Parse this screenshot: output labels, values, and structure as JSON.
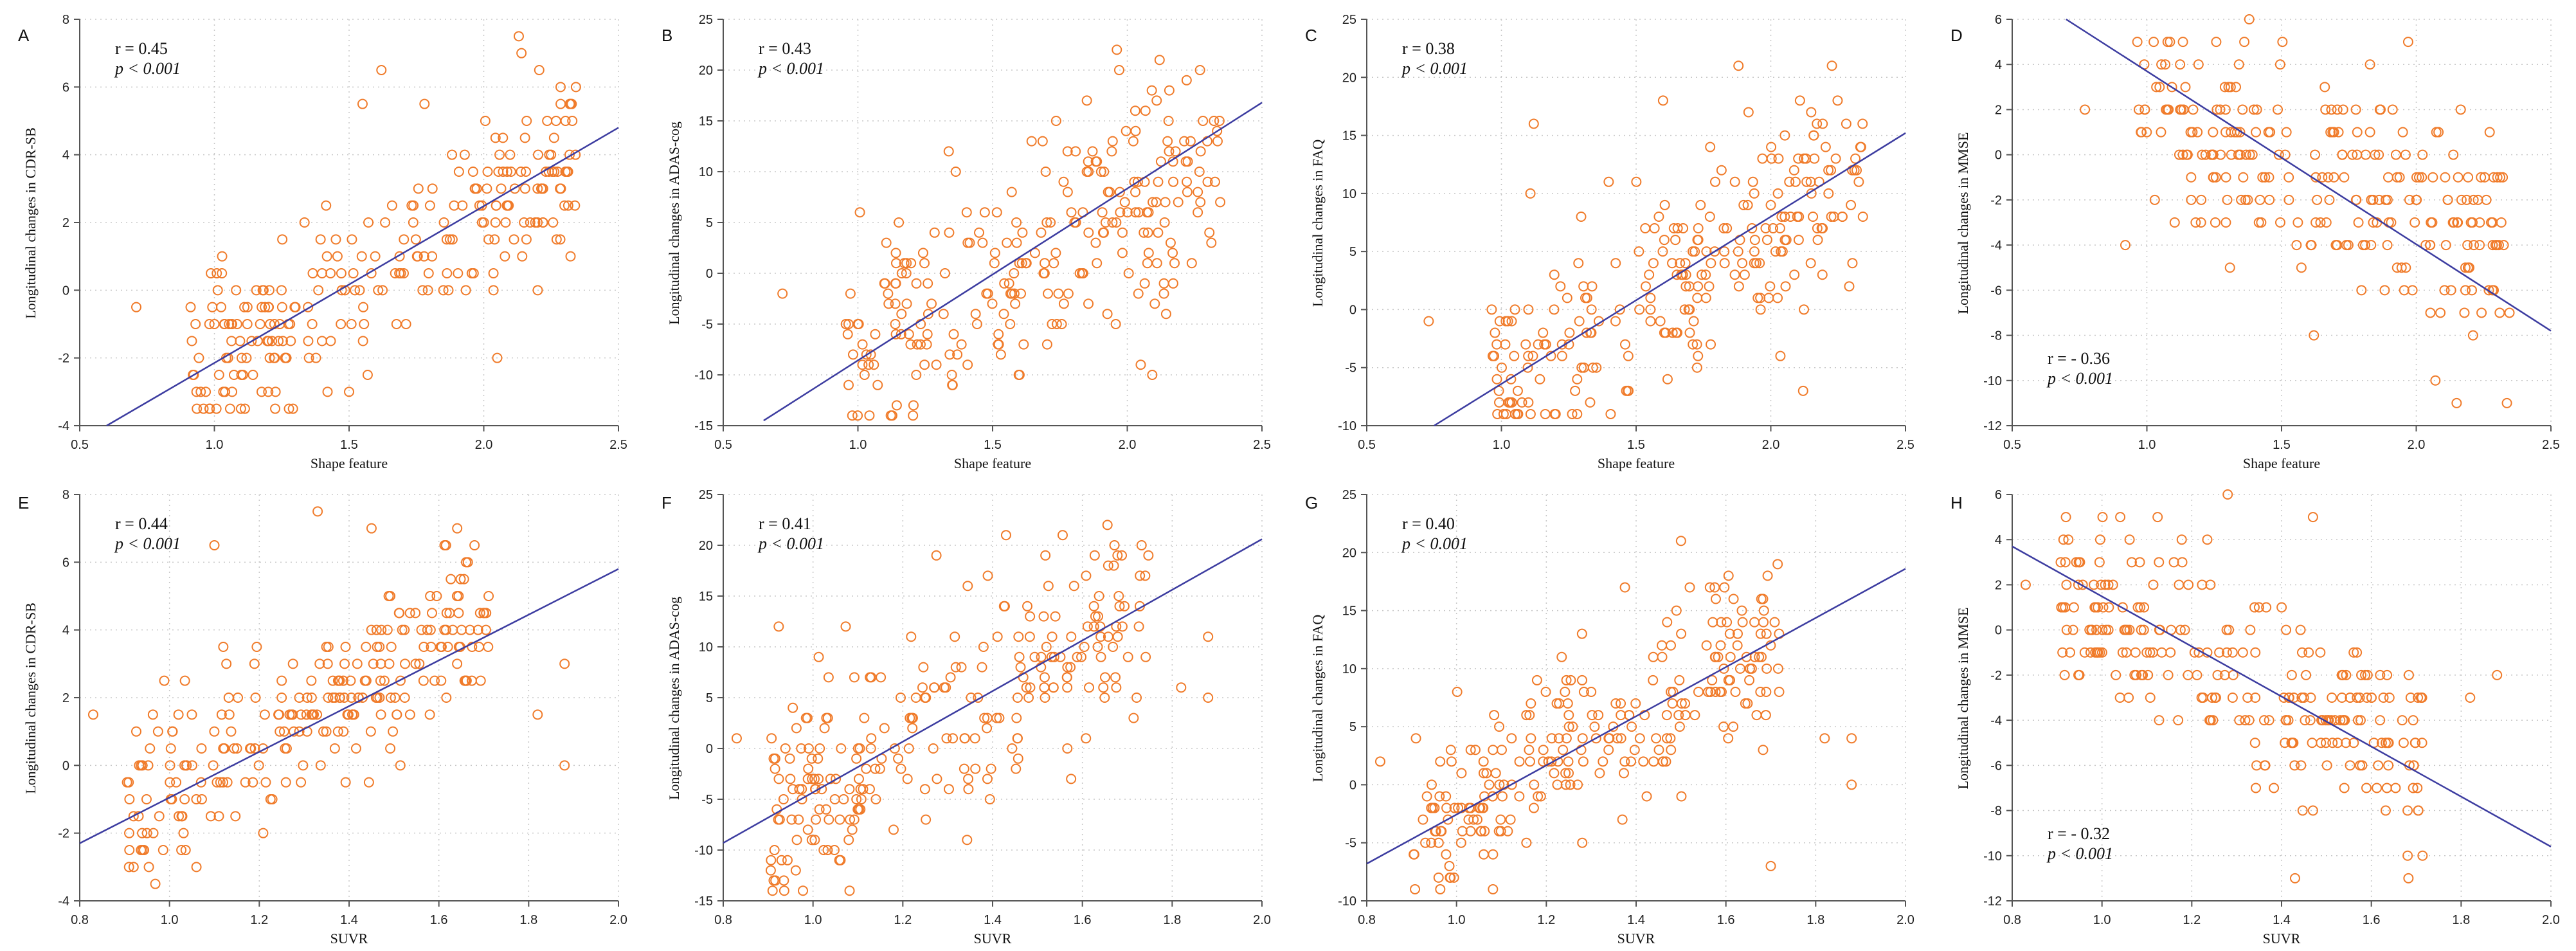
{
  "chart_data": [
    {
      "panel_label": "A",
      "type": "scatter",
      "xlabel": "Shape feature",
      "ylabel": "Longitudinal changes in CDR-SB",
      "xlim": [
        0.5,
        2.5
      ],
      "ylim": [
        -4,
        8
      ],
      "xticks": [
        0.5,
        1.0,
        1.5,
        2.0,
        2.5
      ],
      "xtick_labels": [
        "0.5",
        "1.0",
        "1.5",
        "2.0",
        "2.5"
      ],
      "yticks": [
        -4,
        -2,
        0,
        2,
        4,
        6,
        8
      ],
      "ytick_labels": [
        "-4",
        "-2",
        "0",
        "2",
        "4",
        "6",
        "8"
      ],
      "r_text": "r = 0.45",
      "p_text": "p < 0.001",
      "stat_position": "top-left",
      "regression": [
        [
          0.6,
          -4.0
        ],
        [
          2.5,
          4.8
        ]
      ],
      "trend": {
        "slope": 4.5,
        "intercept": -6.7,
        "spread": 1.3,
        "x_min": 0.9,
        "x_max": 2.35,
        "step": 0.5
      },
      "outliers": [
        [
          0.71,
          -0.5
        ],
        [
          2.13,
          7.5
        ],
        [
          2.14,
          7.0
        ],
        [
          1.62,
          6.5
        ],
        [
          1.78,
          5.5
        ],
        [
          1.55,
          5.5
        ],
        [
          1.2,
          -3.0
        ],
        [
          1.5,
          -3.0
        ],
        [
          2.05,
          -2.0
        ],
        [
          0.93,
          -1.0
        ]
      ],
      "n_points": 250,
      "seed": 11
    },
    {
      "panel_label": "B",
      "type": "scatter",
      "xlabel": "Shape feature",
      "ylabel": "Longitudinal changes in ADAS-cog",
      "xlim": [
        0.5,
        2.5
      ],
      "ylim": [
        -15,
        25
      ],
      "xticks": [
        0.5,
        1.0,
        1.5,
        2.0,
        2.5
      ],
      "xtick_labels": [
        "0.5",
        "1.0",
        "1.5",
        "2.0",
        "2.5"
      ],
      "yticks": [
        -15,
        -10,
        -5,
        0,
        5,
        10,
        15,
        20,
        25
      ],
      "ytick_labels": [
        "-15",
        "-10",
        "-5",
        "0",
        "5",
        "10",
        "15",
        "20",
        "25"
      ],
      "r_text": "r = 0.43",
      "p_text": "p < 0.001",
      "stat_position": "top-left",
      "regression": [
        [
          0.65,
          -14.5
        ],
        [
          2.5,
          16.8
        ]
      ],
      "trend": {
        "slope": 15.0,
        "intercept": -23.0,
        "spread": 5.5,
        "x_min": 0.95,
        "x_max": 2.35,
        "step": 1
      },
      "outliers": [
        [
          0.72,
          -2.0
        ],
        [
          2.12,
          21.0
        ],
        [
          1.97,
          20.0
        ],
        [
          1.85,
          17.0
        ],
        [
          1.35,
          -11.0
        ],
        [
          1.6,
          -10.0
        ],
        [
          2.05,
          -9.0
        ]
      ],
      "n_points": 250,
      "seed": 22
    },
    {
      "panel_label": "C",
      "type": "scatter",
      "xlabel": "Shape feature",
      "ylabel": "Longitudinal changes in FAQ",
      "xlim": [
        0.5,
        2.5
      ],
      "ylim": [
        -10,
        25
      ],
      "xticks": [
        0.5,
        1.0,
        1.5,
        2.0,
        2.5
      ],
      "xtick_labels": [
        "0.5",
        "1.0",
        "1.5",
        "2.0",
        "2.5"
      ],
      "yticks": [
        -10,
        -5,
        0,
        5,
        10,
        15,
        20,
        25
      ],
      "ytick_labels": [
        "-10",
        "-5",
        "0",
        "5",
        "10",
        "15",
        "20",
        "25"
      ],
      "r_text": "r = 0.38",
      "p_text": "p < 0.001",
      "stat_position": "top-left",
      "regression": [
        [
          0.75,
          -10.0
        ],
        [
          2.5,
          15.2
        ]
      ],
      "trend": {
        "slope": 12.5,
        "intercept": -18.0,
        "spread": 4.5,
        "x_min": 0.95,
        "x_max": 2.35,
        "step": 1
      },
      "outliers": [
        [
          0.73,
          -1.0
        ],
        [
          1.88,
          21.0
        ],
        [
          1.1,
          -8.0
        ],
        [
          1.6,
          18.0
        ],
        [
          2.12,
          -7.0
        ],
        [
          1.12,
          16.0
        ]
      ],
      "n_points": 250,
      "seed": 33
    },
    {
      "panel_label": "D",
      "type": "scatter",
      "xlabel": "Shape feature",
      "ylabel": "Longitudinal changes in MMSE",
      "xlim": [
        0.5,
        2.5
      ],
      "ylim": [
        -12,
        6
      ],
      "xticks": [
        0.5,
        1.0,
        1.5,
        2.0,
        2.5
      ],
      "xtick_labels": [
        "0.5",
        "1.0",
        "1.5",
        "2.0",
        "2.5"
      ],
      "yticks": [
        -12,
        -10,
        -8,
        -6,
        -4,
        -2,
        0,
        2,
        4,
        6
      ],
      "ytick_labels": [
        "-12",
        "-10",
        "-8",
        "-6",
        "-4",
        "-2",
        "0",
        "2",
        "4",
        "6"
      ],
      "r_text": "r =  - 0.36",
      "p_text": "p < 0.001",
      "stat_position": "bottom-left",
      "regression": [
        [
          0.7,
          6.0
        ],
        [
          2.5,
          -7.8
        ]
      ],
      "trend": {
        "slope": -4.2,
        "intercept": 5.8,
        "spread": 2.2,
        "x_min": 0.95,
        "x_max": 2.35,
        "step": 1
      },
      "outliers": [
        [
          0.77,
          2.0
        ],
        [
          2.15,
          -11.0
        ],
        [
          1.38,
          6.0
        ],
        [
          1.97,
          5.0
        ],
        [
          1.62,
          -8.0
        ],
        [
          0.92,
          -4.0
        ]
      ],
      "n_points": 250,
      "seed": 44
    },
    {
      "panel_label": "E",
      "type": "scatter",
      "xlabel": "SUVR",
      "ylabel": "Longitudinal changes in CDR-SB",
      "xlim": [
        0.8,
        2.0
      ],
      "ylim": [
        -4,
        8
      ],
      "xticks": [
        0.8,
        1.0,
        1.2,
        1.4,
        1.6,
        1.8,
        2.0
      ],
      "xtick_labels": [
        "0.8",
        "1.0",
        "1.2",
        "1.4",
        "1.6",
        "1.8",
        "2.0"
      ],
      "yticks": [
        -4,
        -2,
        0,
        2,
        4,
        6,
        8
      ],
      "ytick_labels": [
        "-4",
        "-2",
        "0",
        "2",
        "4",
        "6",
        "8"
      ],
      "r_text": "r = 0.44",
      "p_text": "p < 0.001",
      "stat_position": "top-left",
      "regression": [
        [
          0.8,
          -2.3
        ],
        [
          2.0,
          5.8
        ]
      ],
      "trend": {
        "slope": 6.8,
        "intercept": -7.4,
        "spread": 1.3,
        "x_min": 0.9,
        "x_max": 1.72,
        "step": 0.5
      },
      "outliers": [
        [
          0.83,
          1.5
        ],
        [
          1.33,
          7.5
        ],
        [
          1.45,
          7.0
        ],
        [
          1.1,
          6.5
        ],
        [
          1.88,
          3.0
        ],
        [
          1.88,
          0.0
        ],
        [
          0.92,
          -3.0
        ],
        [
          1.06,
          -3.0
        ],
        [
          1.82,
          1.5
        ]
      ],
      "n_points": 250,
      "seed": 55
    },
    {
      "panel_label": "F",
      "type": "scatter",
      "xlabel": "SUVR",
      "ylabel": "Longitudinal changes in ADAS-cog",
      "xlim": [
        0.8,
        2.0
      ],
      "ylim": [
        -15,
        25
      ],
      "xticks": [
        0.8,
        1.0,
        1.2,
        1.4,
        1.6,
        1.8,
        2.0
      ],
      "xtick_labels": [
        "0.8",
        "1.0",
        "1.2",
        "1.4",
        "1.6",
        "1.8",
        "2.0"
      ],
      "yticks": [
        -15,
        -10,
        -5,
        0,
        5,
        10,
        15,
        20,
        25
      ],
      "ytick_labels": [
        "-15",
        "-10",
        "-5",
        "0",
        "5",
        "10",
        "15",
        "20",
        "25"
      ],
      "r_text": "r = 0.41",
      "p_text": "p < 0.001",
      "stat_position": "top-left",
      "regression": [
        [
          0.8,
          -9.3
        ],
        [
          2.0,
          20.6
        ]
      ],
      "trend": {
        "slope": 24.0,
        "intercept": -28.5,
        "spread": 5.0,
        "x_min": 0.9,
        "x_max": 1.75,
        "step": 1
      },
      "outliers": [
        [
          0.83,
          1.0
        ],
        [
          1.88,
          11.0
        ],
        [
          1.88,
          5.0
        ],
        [
          1.82,
          6.0
        ],
        [
          1.43,
          21.0
        ],
        [
          1.67,
          18.0
        ],
        [
          0.93,
          -11.0
        ]
      ],
      "n_points": 250,
      "seed": 66
    },
    {
      "panel_label": "G",
      "type": "scatter",
      "xlabel": "SUVR",
      "ylabel": "Longitudinal changes in FAQ",
      "xlim": [
        0.8,
        2.0
      ],
      "ylim": [
        -10,
        25
      ],
      "xticks": [
        0.8,
        1.0,
        1.2,
        1.4,
        1.6,
        1.8,
        2.0
      ],
      "xtick_labels": [
        "0.8",
        "1.0",
        "1.2",
        "1.4",
        "1.6",
        "1.8",
        "2.0"
      ],
      "yticks": [
        -10,
        -5,
        0,
        5,
        10,
        15,
        20,
        25
      ],
      "ytick_labels": [
        "-10",
        "-5",
        "0",
        "5",
        "10",
        "15",
        "20",
        "25"
      ],
      "r_text": "r = 0.40",
      "p_text": "p < 0.001",
      "stat_position": "top-left",
      "regression": [
        [
          0.8,
          -6.8
        ],
        [
          2.0,
          18.6
        ]
      ],
      "trend": {
        "slope": 20.0,
        "intercept": -22.0,
        "spread": 4.0,
        "x_min": 0.9,
        "x_max": 1.72,
        "step": 1
      },
      "outliers": [
        [
          0.83,
          2.0
        ],
        [
          1.5,
          21.0
        ],
        [
          1.88,
          4.0
        ],
        [
          1.88,
          0.0
        ],
        [
          1.82,
          4.0
        ],
        [
          1.7,
          -7.0
        ],
        [
          0.96,
          -8.0
        ]
      ],
      "n_points": 250,
      "seed": 77
    },
    {
      "panel_label": "H",
      "type": "scatter",
      "xlabel": "SUVR",
      "ylabel": "Longitudinal changes in MMSE",
      "xlim": [
        0.8,
        2.0
      ],
      "ylim": [
        -12,
        6
      ],
      "xticks": [
        0.8,
        1.0,
        1.2,
        1.4,
        1.6,
        1.8,
        2.0
      ],
      "xtick_labels": [
        "0.8",
        "1.0",
        "1.2",
        "1.4",
        "1.6",
        "1.8",
        "2.0"
      ],
      "yticks": [
        -12,
        -10,
        -8,
        -6,
        -4,
        -2,
        0,
        2,
        4,
        6
      ],
      "ytick_labels": [
        "-12",
        "-10",
        "-8",
        "-6",
        "-4",
        "-2",
        "0",
        "2",
        "4",
        "6"
      ],
      "r_text": "r =  - 0.32",
      "p_text": "p < 0.001",
      "stat_position": "bottom-left",
      "regression": [
        [
          0.8,
          3.7
        ],
        [
          2.0,
          -9.6
        ]
      ],
      "trend": {
        "slope": -9.5,
        "intercept": 10.5,
        "spread": 2.2,
        "x_min": 0.9,
        "x_max": 1.72,
        "step": 1
      },
      "outliers": [
        [
          0.83,
          2.0
        ],
        [
          1.28,
          6.0
        ],
        [
          1.43,
          -11.0
        ],
        [
          1.47,
          5.0
        ],
        [
          1.88,
          -2.0
        ],
        [
          1.82,
          -3.0
        ],
        [
          1.47,
          -8.0
        ]
      ],
      "n_points": 250,
      "seed": 88
    }
  ],
  "colors": {
    "marker": "#f07b2a",
    "regression": "#3c3ca0",
    "axis": "#555555",
    "grid": "#c8c8c8"
  }
}
